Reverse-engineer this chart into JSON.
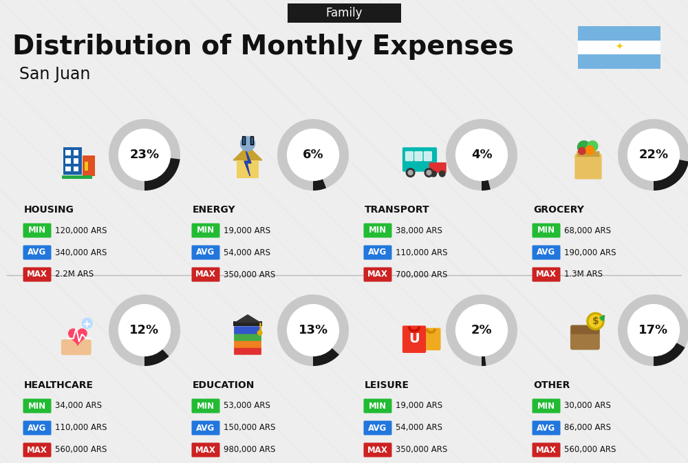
{
  "title": "Distribution of Monthly Expenses",
  "subtitle": "San Juan",
  "header_label": "Family",
  "background_color": "#eeeeee",
  "categories": [
    {
      "name": "HOUSING",
      "percent": 23,
      "min": "120,000 ARS",
      "avg": "340,000 ARS",
      "max": "2.2M ARS",
      "icon": "housing",
      "row": 0,
      "col": 0
    },
    {
      "name": "ENERGY",
      "percent": 6,
      "min": "19,000 ARS",
      "avg": "54,000 ARS",
      "max": "350,000 ARS",
      "icon": "energy",
      "row": 0,
      "col": 1
    },
    {
      "name": "TRANSPORT",
      "percent": 4,
      "min": "38,000 ARS",
      "avg": "110,000 ARS",
      "max": "700,000 ARS",
      "icon": "transport",
      "row": 0,
      "col": 2
    },
    {
      "name": "GROCERY",
      "percent": 22,
      "min": "68,000 ARS",
      "avg": "190,000 ARS",
      "max": "1.3M ARS",
      "icon": "grocery",
      "row": 0,
      "col": 3
    },
    {
      "name": "HEALTHCARE",
      "percent": 12,
      "min": "34,000 ARS",
      "avg": "110,000 ARS",
      "max": "560,000 ARS",
      "icon": "healthcare",
      "row": 1,
      "col": 0
    },
    {
      "name": "EDUCATION",
      "percent": 13,
      "min": "53,000 ARS",
      "avg": "150,000 ARS",
      "max": "980,000 ARS",
      "icon": "education",
      "row": 1,
      "col": 1
    },
    {
      "name": "LEISURE",
      "percent": 2,
      "min": "19,000 ARS",
      "avg": "54,000 ARS",
      "max": "350,000 ARS",
      "icon": "leisure",
      "row": 1,
      "col": 2
    },
    {
      "name": "OTHER",
      "percent": 17,
      "min": "30,000 ARS",
      "avg": "86,000 ARS",
      "max": "560,000 ARS",
      "icon": "other",
      "row": 1,
      "col": 3
    }
  ],
  "min_color": "#22bb33",
  "avg_color": "#2277dd",
  "max_color": "#cc2222",
  "ring_bg_color": "#c8c8c8",
  "ring_fg_color": "#1a1a1a",
  "title_color": "#111111",
  "flag_blue": "#74b2e0",
  "flag_white": "#ffffff",
  "flag_sun": "#f5c518"
}
